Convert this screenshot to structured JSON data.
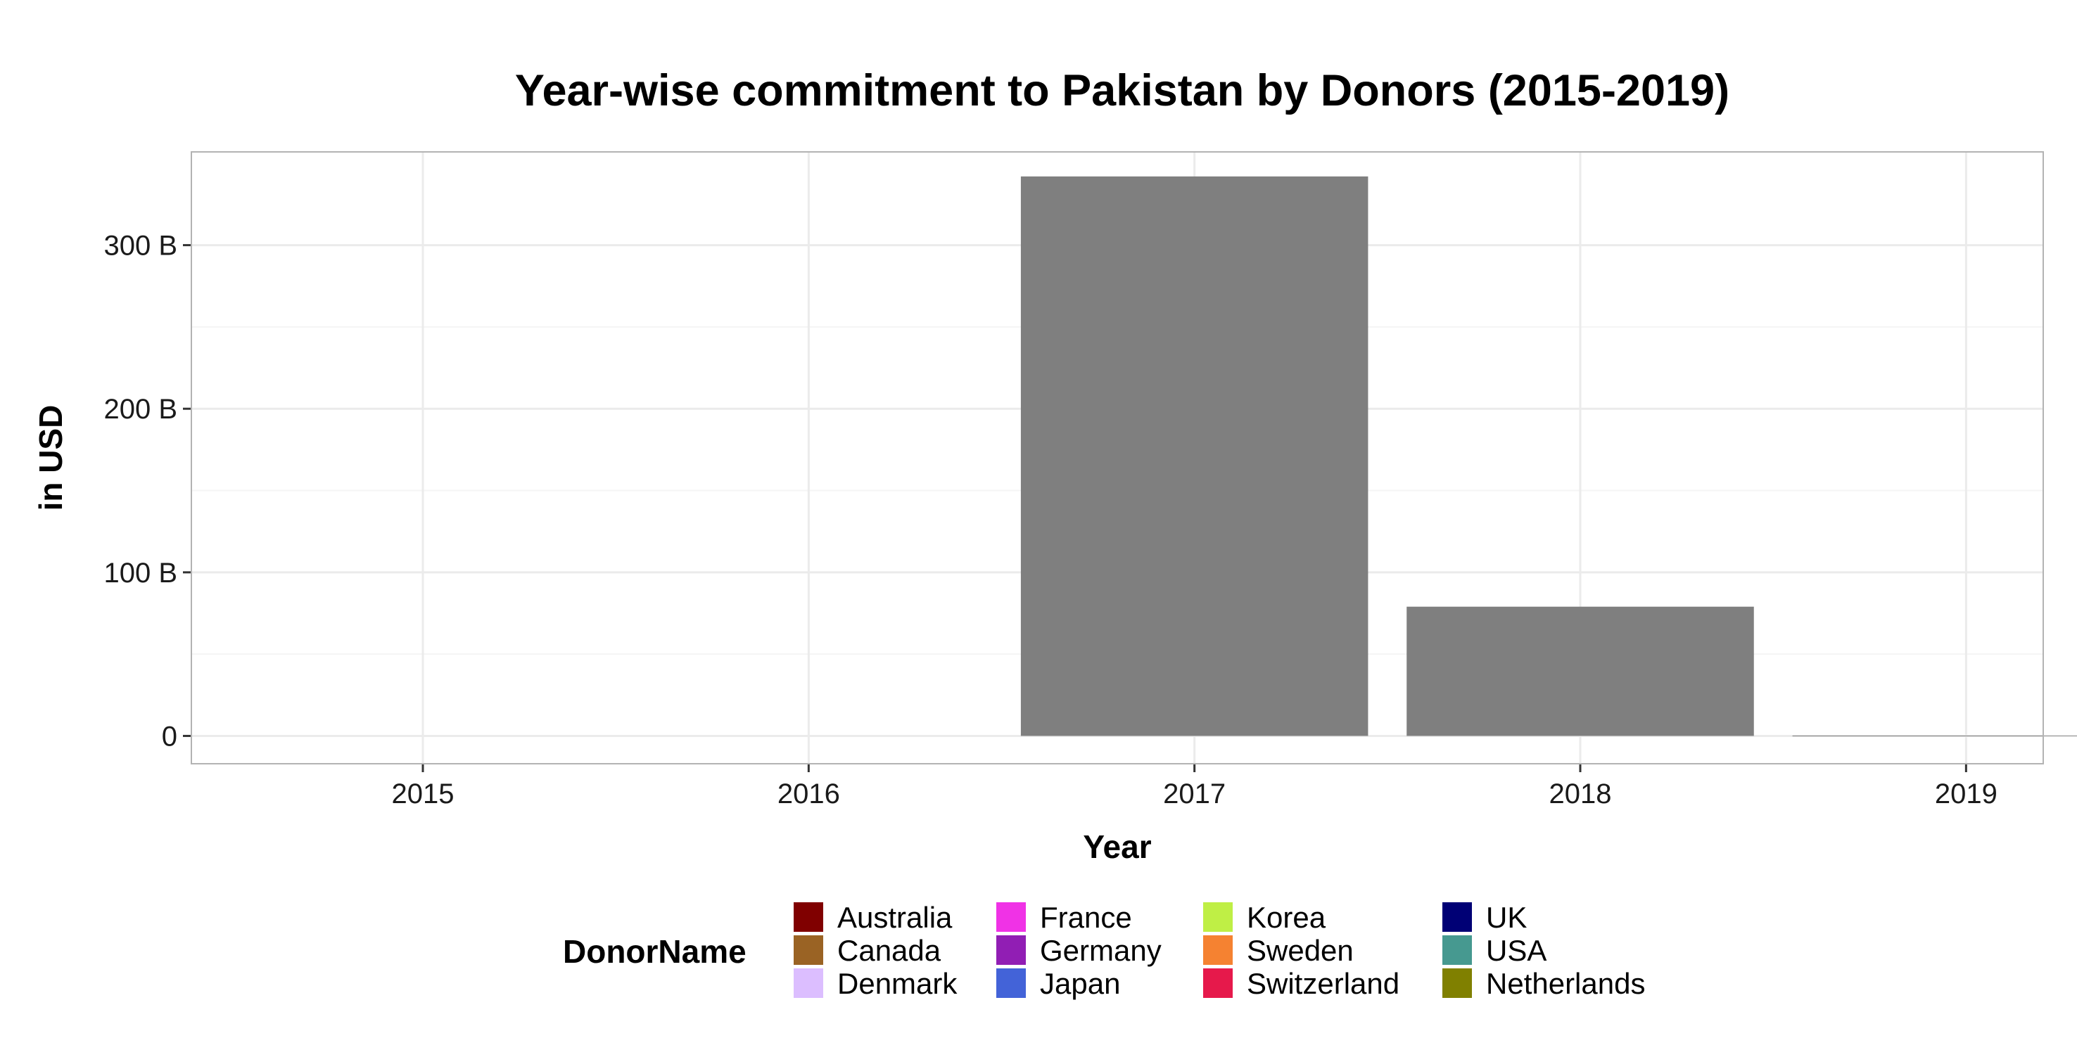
{
  "chart_data": {
    "type": "bar",
    "title": "Year-wise commitment to Pakistan by Donors (2015-2019)",
    "xlabel": "Year",
    "ylabel": "in USD",
    "categories": [
      "2015",
      "2016",
      "2017",
      "2018",
      "2019"
    ],
    "values": [
      0,
      0,
      342,
      79,
      0.2
    ],
    "value_unit": "B",
    "ylim": [
      -17,
      357
    ],
    "yticks": [
      0,
      100,
      200,
      300
    ],
    "ytick_labels": [
      "0",
      "100 B",
      "200 B",
      "300 B"
    ],
    "bar_color": "#7f7f7f",
    "grid": true,
    "legend_position": "bottom",
    "legend": {
      "title": "DonorName",
      "entries": [
        {
          "name": "Australia",
          "color": "#800000"
        },
        {
          "name": "Canada",
          "color": "#9a6324"
        },
        {
          "name": "Denmark",
          "color": "#dcbeff"
        },
        {
          "name": "France",
          "color": "#f032e6"
        },
        {
          "name": "Germany",
          "color": "#911eb4"
        },
        {
          "name": "Japan",
          "color": "#4363d8"
        },
        {
          "name": "Korea",
          "color": "#bfef45"
        },
        {
          "name": "Sweden",
          "color": "#f58231"
        },
        {
          "name": "Switzerland",
          "color": "#e6194b"
        },
        {
          "name": "UK",
          "color": "#000075"
        },
        {
          "name": "USA",
          "color": "#469990"
        },
        {
          "name": "Netherlands",
          "color": "#808000"
        }
      ]
    }
  }
}
